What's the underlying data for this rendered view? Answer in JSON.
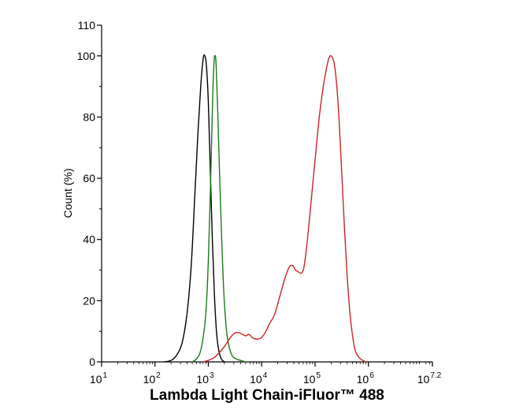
{
  "chart_data": {
    "type": "line",
    "xlabel": "Lambda Light Chain-iFluor™ 488",
    "ylabel": "Count  (%)",
    "x_scale": "log10",
    "xlim": [
      10,
      15848932
    ],
    "ylim": [
      0,
      110
    ],
    "x_ticks": [
      {
        "base": "10",
        "exp": "1",
        "value": 10
      },
      {
        "base": "10",
        "exp": "2",
        "value": 100
      },
      {
        "base": "10",
        "exp": "3",
        "value": 1000
      },
      {
        "base": "10",
        "exp": "4",
        "value": 10000
      },
      {
        "base": "10",
        "exp": "5",
        "value": 100000
      },
      {
        "base": "10",
        "exp": "6",
        "value": 1000000
      },
      {
        "base": "10",
        "exp": "7.2",
        "value": 15848932
      }
    ],
    "y_ticks": [
      "0",
      "20",
      "40",
      "60",
      "80",
      "100",
      "110"
    ],
    "grid": false,
    "series": [
      {
        "color": "#000000",
        "points": [
          [
            150,
            0
          ],
          [
            200,
            0.5
          ],
          [
            250,
            2
          ],
          [
            320,
            6
          ],
          [
            400,
            16
          ],
          [
            480,
            32
          ],
          [
            560,
            55
          ],
          [
            640,
            75
          ],
          [
            720,
            90
          ],
          [
            800,
            99
          ],
          [
            860,
            100
          ],
          [
            920,
            97
          ],
          [
            1000,
            85
          ],
          [
            1080,
            65
          ],
          [
            1180,
            42
          ],
          [
            1300,
            22
          ],
          [
            1420,
            10
          ],
          [
            1560,
            4
          ],
          [
            1750,
            1
          ],
          [
            2000,
            0
          ]
        ]
      },
      {
        "color": "#1a7a1a",
        "points": [
          [
            500,
            0
          ],
          [
            600,
            1
          ],
          [
            700,
            3
          ],
          [
            800,
            8
          ],
          [
            900,
            16
          ],
          [
            1000,
            33
          ],
          [
            1100,
            58
          ],
          [
            1200,
            85
          ],
          [
            1280,
            98
          ],
          [
            1340,
            100
          ],
          [
            1400,
            97
          ],
          [
            1500,
            82
          ],
          [
            1620,
            62
          ],
          [
            1780,
            40
          ],
          [
            1960,
            22
          ],
          [
            2200,
            10
          ],
          [
            2450,
            5
          ],
          [
            2800,
            2
          ],
          [
            3300,
            1
          ],
          [
            4000,
            0.5
          ],
          [
            5000,
            0
          ]
        ]
      },
      {
        "color": "#cc2222",
        "points": [
          [
            800,
            0
          ],
          [
            1000,
            0.5
          ],
          [
            1300,
            1.5
          ],
          [
            1600,
            3
          ],
          [
            2000,
            5
          ],
          [
            2600,
            8
          ],
          [
            3200,
            9.5
          ],
          [
            3800,
            9.5
          ],
          [
            4400,
            9
          ],
          [
            5000,
            8.5
          ],
          [
            5800,
            9
          ],
          [
            6600,
            8
          ],
          [
            7600,
            7.5
          ],
          [
            8700,
            7.5
          ],
          [
            10000,
            8
          ],
          [
            12000,
            10
          ],
          [
            14000,
            12.5
          ],
          [
            17000,
            15
          ],
          [
            20000,
            19
          ],
          [
            24000,
            24
          ],
          [
            28000,
            28
          ],
          [
            33000,
            31
          ],
          [
            38000,
            31.5
          ],
          [
            43000,
            30
          ],
          [
            48000,
            29.5
          ],
          [
            55000,
            29
          ],
          [
            62000,
            31
          ],
          [
            72000,
            40
          ],
          [
            85000,
            53
          ],
          [
            100000,
            66
          ],
          [
            120000,
            80
          ],
          [
            140000,
            89
          ],
          [
            160000,
            95
          ],
          [
            180000,
            99
          ],
          [
            200000,
            100
          ],
          [
            225000,
            98
          ],
          [
            250000,
            92
          ],
          [
            280000,
            80
          ],
          [
            320000,
            60
          ],
          [
            360000,
            42
          ],
          [
            400000,
            28
          ],
          [
            450000,
            16
          ],
          [
            500000,
            9
          ],
          [
            560000,
            4
          ],
          [
            630000,
            2
          ],
          [
            710000,
            1
          ],
          [
            800000,
            0.4
          ],
          [
            900000,
            0
          ]
        ]
      }
    ]
  }
}
